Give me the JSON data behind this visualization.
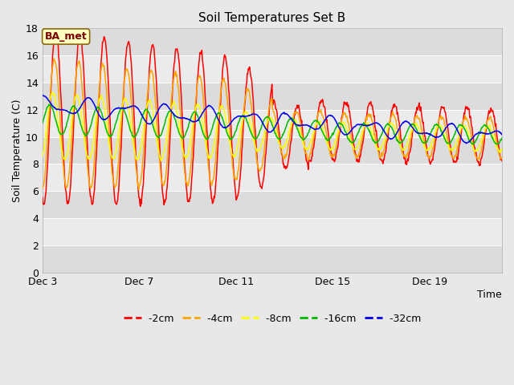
{
  "title": "Soil Temperatures Set B",
  "xlabel": "Time",
  "ylabel": "Soil Temperature (C)",
  "ylim": [
    0,
    18
  ],
  "yticks": [
    0,
    2,
    4,
    6,
    8,
    10,
    12,
    14,
    16,
    18
  ],
  "xtick_labels": [
    "Dec 3",
    "Dec 7",
    "Dec 11",
    "Dec 15",
    "Dec 19"
  ],
  "xtick_pos": [
    0,
    4,
    8,
    12,
    16
  ],
  "annotation_text": "BA_met",
  "annotation_bg": "#FFFFC0",
  "annotation_border": "#8B6914",
  "line_colors": {
    "-2cm": "#FF0000",
    "-4cm": "#FFA500",
    "-8cm": "#FFFF00",
    "-16cm": "#00BB00",
    "-32cm": "#0000EE"
  },
  "n_days": 19,
  "fig_bg": "#E8E8E8",
  "band_light": "#EBEBEB",
  "band_dark": "#DCDCDC"
}
